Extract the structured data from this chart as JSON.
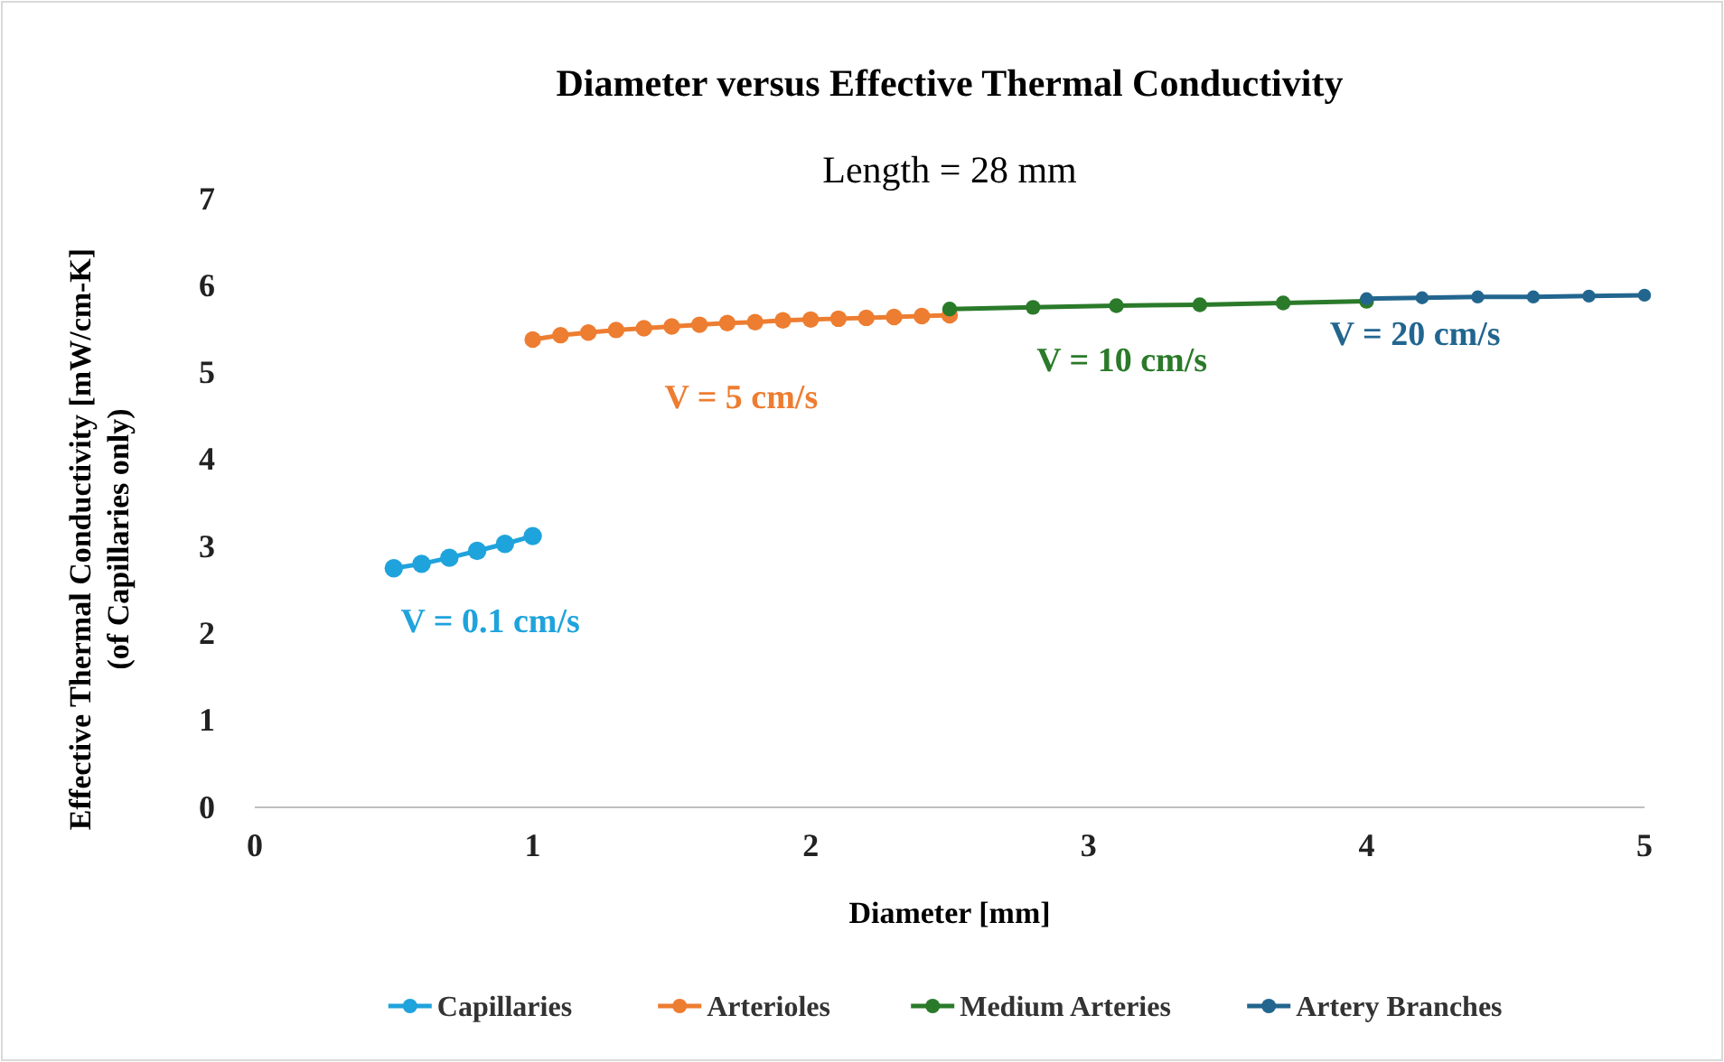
{
  "chart_data": {
    "type": "line",
    "title": "Diameter versus Effective Thermal Conductivity",
    "subtitle": "Length = 28 mm",
    "xlabel": "Diameter [mm]",
    "ylabel": "Effective Thermal Conductivity [mW/cm-K]\n(of Capillaries only)",
    "xlim": [
      0,
      5
    ],
    "xticks": [
      0,
      1,
      2,
      3,
      4,
      5
    ],
    "ylim": [
      0,
      7
    ],
    "yticks": [
      0,
      1,
      2,
      3,
      4,
      5,
      6,
      7
    ],
    "grid": false,
    "legend": "bottom",
    "marker": "circle",
    "line_style": "solid",
    "series": [
      {
        "name": "Capillaries",
        "color": "#1fa3dc",
        "x": [
          0.5,
          0.6,
          0.7,
          0.8,
          0.9,
          1.0
        ],
        "values": [
          2.75,
          2.8,
          2.87,
          2.95,
          3.03,
          3.12
        ]
      },
      {
        "name": "Arterioles",
        "color": "#ed7d31",
        "x": [
          1.0,
          1.1,
          1.2,
          1.3,
          1.4,
          1.5,
          1.6,
          1.7,
          1.8,
          1.9,
          2.0,
          2.1,
          2.2,
          2.3,
          2.4,
          2.5
        ],
        "values": [
          5.38,
          5.43,
          5.46,
          5.49,
          5.51,
          5.53,
          5.55,
          5.57,
          5.58,
          5.6,
          5.61,
          5.62,
          5.63,
          5.64,
          5.65,
          5.66
        ]
      },
      {
        "name": "Medium Arteries",
        "color": "#2a7a2a",
        "x": [
          2.5,
          2.8,
          3.1,
          3.4,
          3.7,
          4.0
        ],
        "values": [
          5.73,
          5.75,
          5.77,
          5.78,
          5.8,
          5.82
        ]
      },
      {
        "name": "Artery Branches",
        "color": "#22668f",
        "x": [
          4.0,
          4.2,
          4.4,
          4.6,
          4.8,
          5.0
        ],
        "values": [
          5.85,
          5.86,
          5.87,
          5.87,
          5.88,
          5.89
        ]
      }
    ],
    "annotations": [
      "V = 0.1 cm/s",
      "V = 5 cm/s",
      "V = 10 cm/s",
      "V = 20 cm/s"
    ]
  }
}
